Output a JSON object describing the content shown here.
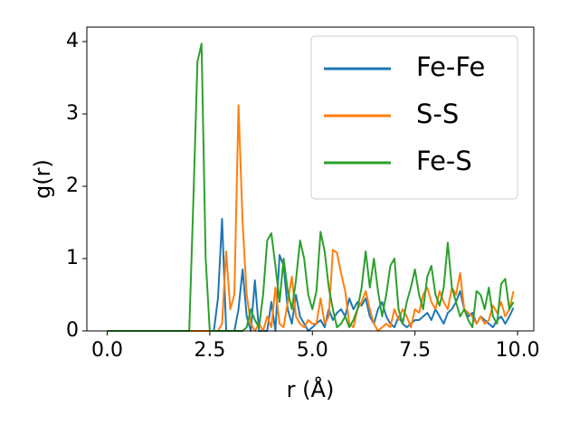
{
  "chart_data": {
    "type": "line",
    "x_label": "r (Å)",
    "y_label": "g(r)",
    "x": [
      0,
      0.1,
      0.2,
      0.3,
      0.4,
      0.5,
      0.6,
      0.7,
      0.8,
      0.9,
      1.0,
      1.1,
      1.2,
      1.3,
      1.4,
      1.5,
      1.6,
      1.7,
      1.8,
      1.9,
      2.0,
      2.1,
      2.2,
      2.3,
      2.4,
      2.5,
      2.6,
      2.7,
      2.8,
      2.9,
      3.0,
      3.1,
      3.2,
      3.3,
      3.4,
      3.5,
      3.6,
      3.7,
      3.8,
      3.9,
      4.0,
      4.1,
      4.2,
      4.3,
      4.4,
      4.5,
      4.6,
      4.7,
      4.8,
      4.9,
      5.0,
      5.1,
      5.2,
      5.3,
      5.4,
      5.5,
      5.6,
      5.7,
      5.8,
      5.9,
      6.0,
      6.1,
      6.2,
      6.3,
      6.4,
      6.5,
      6.6,
      6.7,
      6.8,
      6.9,
      7.0,
      7.1,
      7.2,
      7.3,
      7.4,
      7.5,
      7.6,
      7.7,
      7.8,
      7.9,
      8.0,
      8.1,
      8.2,
      8.3,
      8.4,
      8.5,
      8.6,
      8.7,
      8.8,
      8.9,
      9.0,
      9.1,
      9.2,
      9.3,
      9.4,
      9.5,
      9.6,
      9.7,
      9.8,
      9.9
    ],
    "series": [
      {
        "name": "Fe-Fe",
        "color": "#1f77b4",
        "values": [
          0,
          0,
          0,
          0,
          0,
          0,
          0,
          0,
          0,
          0,
          0,
          0,
          0,
          0,
          0,
          0,
          0,
          0,
          0,
          0,
          0,
          0,
          0,
          0,
          0,
          0,
          0,
          0.45,
          1.55,
          0,
          0,
          0,
          0.3,
          0.85,
          0.2,
          0,
          0.7,
          0,
          0,
          0,
          0.4,
          0,
          1.05,
          0.9,
          0.3,
          0.1,
          0.5,
          0.2,
          0.1,
          0,
          0.05,
          0.1,
          0.15,
          0.05,
          0.3,
          0.15,
          0.25,
          0.3,
          0.2,
          0.45,
          0.3,
          0.4,
          0.35,
          0.45,
          0.2,
          0.1,
          0.3,
          0.4,
          0.2,
          0.1,
          0.05,
          0.2,
          0.1,
          0.05,
          0.1,
          0.15,
          0.15,
          0.2,
          0.25,
          0.15,
          0.3,
          0.2,
          0.1,
          0.25,
          0.3,
          0.4,
          0.55,
          0.3,
          0.2,
          0.25,
          0.1,
          0.2,
          0.15,
          0.1,
          0.05,
          0.15,
          0.2,
          0.1,
          0.2,
          0.32
        ]
      },
      {
        "name": "S-S",
        "color": "#ff7f0e",
        "values": [
          0,
          0,
          0,
          0,
          0,
          0,
          0,
          0,
          0,
          0,
          0,
          0,
          0,
          0,
          0,
          0,
          0,
          0,
          0,
          0,
          0,
          0,
          0,
          0,
          0,
          0,
          0,
          0,
          0.1,
          1.1,
          0.3,
          0.5,
          3.12,
          1.5,
          0.5,
          0.1,
          0,
          0.1,
          0,
          0.2,
          0.05,
          0.6,
          0.1,
          0.05,
          0.4,
          0.75,
          0.2,
          0.1,
          0.05,
          0.15,
          0.1,
          0.1,
          0.45,
          0.1,
          0.2,
          1.12,
          1.08,
          0.8,
          0.55,
          0.1,
          0.05,
          0.3,
          0.4,
          0.55,
          0.3,
          0.1,
          0,
          0.05,
          0.1,
          0.05,
          0.3,
          0.15,
          0.3,
          0.2,
          0.05,
          0.3,
          0.25,
          0.5,
          0.6,
          0.4,
          0.3,
          0.55,
          0.4,
          0.3,
          0.6,
          0.5,
          0.8,
          0.3,
          0.25,
          0.2,
          0.1,
          0.2,
          0.1,
          0.15,
          0.35,
          0.25,
          0.4,
          0.2,
          0.3,
          0.55
        ]
      },
      {
        "name": "Fe-S",
        "color": "#2ca02c",
        "values": [
          0,
          0,
          0,
          0,
          0,
          0,
          0,
          0,
          0,
          0,
          0,
          0,
          0,
          0,
          0,
          0,
          0,
          0,
          0,
          0,
          0,
          1.8,
          3.72,
          3.97,
          1.0,
          0,
          0,
          0,
          0,
          0,
          0,
          0,
          0,
          0,
          0.05,
          0.3,
          0.15,
          0.05,
          0.5,
          1.25,
          1.35,
          0.9,
          0.4,
          1.0,
          0.55,
          0.3,
          0.7,
          1.25,
          1.0,
          0.5,
          0.3,
          0.55,
          1.37,
          1.1,
          0.6,
          0.3,
          0.05,
          0.1,
          0.2,
          0.05,
          0.15,
          0.3,
          0.6,
          1.1,
          0.6,
          1.0,
          0.55,
          0.2,
          0.5,
          0.9,
          1.0,
          0.3,
          0.1,
          0.4,
          0.6,
          0.85,
          0.5,
          0.3,
          0.75,
          0.9,
          0.5,
          0.35,
          0.6,
          1.22,
          0.6,
          0.4,
          0.2,
          0.3,
          0.15,
          0.05,
          0.55,
          0.5,
          0.3,
          0.6,
          0.2,
          0.1,
          0.65,
          0.72,
          0.3,
          0.4
        ]
      }
    ],
    "xlim": [
      -0.495,
      10.395
    ],
    "ylim": [
      0,
      4.2
    ],
    "xticks": [
      {
        "value": 0,
        "label": "0.0"
      },
      {
        "value": 2.5,
        "label": "2.5"
      },
      {
        "value": 5,
        "label": "5.0"
      },
      {
        "value": 7.5,
        "label": "7.5"
      },
      {
        "value": 10,
        "label": "10.0"
      }
    ],
    "yticks": [
      0,
      1,
      2,
      3,
      4
    ],
    "grid": false,
    "legend": "upper right"
  }
}
